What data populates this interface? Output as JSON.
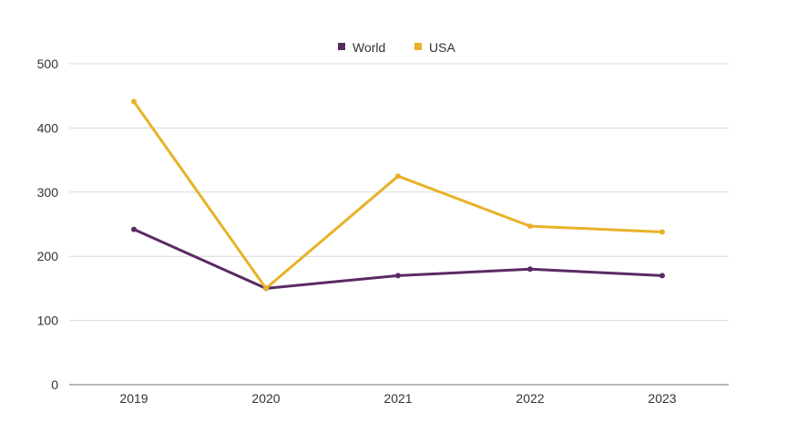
{
  "chart_data": {
    "type": "line",
    "title": "",
    "xlabel": "",
    "ylabel": "",
    "categories": [
      "2019",
      "2020",
      "2021",
      "2022",
      "2023"
    ],
    "ylim": [
      0,
      500
    ],
    "y_ticks": [
      0,
      100,
      200,
      300,
      400,
      500
    ],
    "grid": true,
    "legend_position": "top-center",
    "series": [
      {
        "name": "World",
        "color": "#5b2a63",
        "values": [
          242,
          150,
          170,
          180,
          170
        ]
      },
      {
        "name": "USA",
        "color": "#e8b228",
        "values": [
          441,
          150,
          325,
          247,
          238
        ]
      }
    ]
  }
}
